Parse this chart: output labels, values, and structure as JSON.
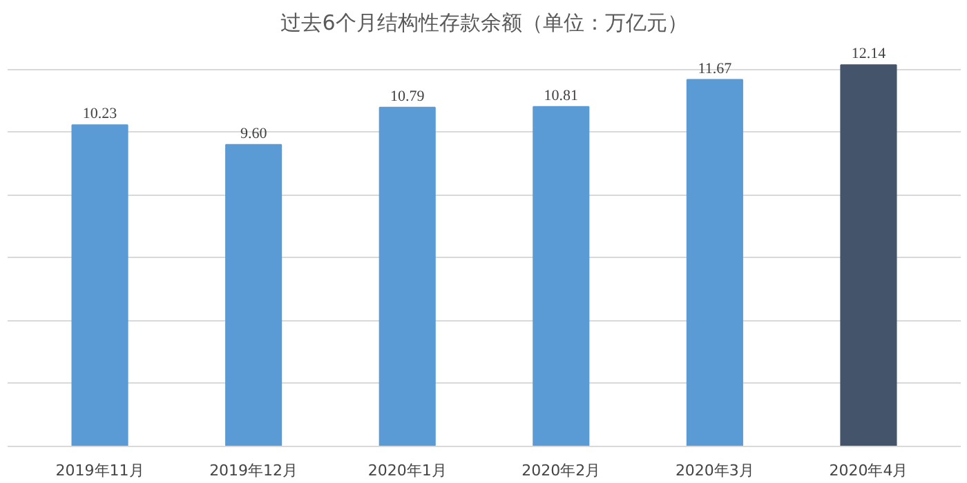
{
  "chart_data": {
    "type": "bar",
    "title": "过去6个月结构性存款余额（单位：万亿元）",
    "categories": [
      "2019年11月",
      "2019年12月",
      "2020年1月",
      "2020年2月",
      "2020年3月",
      "2020年4月"
    ],
    "values": [
      10.23,
      9.6,
      10.79,
      10.81,
      11.67,
      12.14
    ],
    "colors": [
      "#5b9bd5",
      "#5b9bd5",
      "#5b9bd5",
      "#5b9bd5",
      "#5b9bd5",
      "#44546a"
    ],
    "value_labels": [
      "10.23",
      "9.60",
      "10.79",
      "10.81",
      "11.67",
      "12.14"
    ],
    "grid": "y",
    "tick_labels": "x"
  }
}
